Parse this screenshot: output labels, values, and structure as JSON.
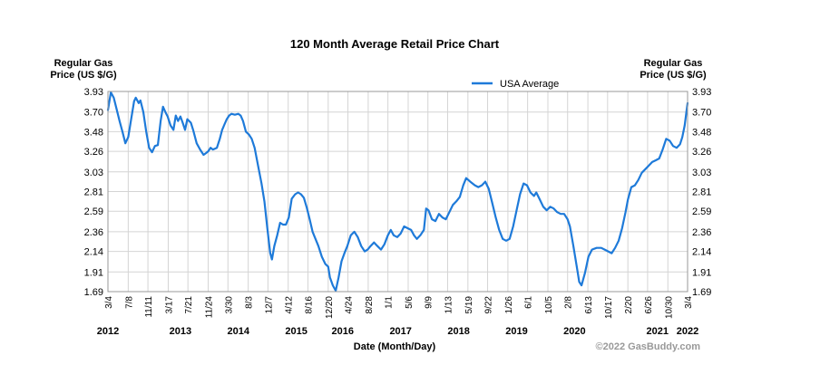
{
  "chart_data": {
    "type": "line",
    "title": "120 Month Average Retail Price Chart",
    "ylabel_left": [
      "Regular Gas",
      "Price (US $/G)"
    ],
    "ylabel_right": [
      "Regular Gas",
      "Price (US $/G)"
    ],
    "xlabel": "Date (Month/Day)",
    "ylim": [
      1.69,
      3.93
    ],
    "yticks": [
      "1.69",
      "1.91",
      "2.14",
      "2.36",
      "2.59",
      "2.81",
      "3.03",
      "3.26",
      "3.48",
      "3.70",
      "3.93"
    ],
    "grid": true,
    "legend": {
      "placement": "top-center",
      "entries": [
        "USA Average"
      ]
    },
    "credit": "©2022 GasBuddy.com",
    "xlim": [
      2012.17,
      2022.17
    ],
    "xticks": [
      {
        "label": "3/4",
        "t": 2012.17
      },
      {
        "label": "7/8",
        "t": 2012.52
      },
      {
        "label": "11/11",
        "t": 2012.86
      },
      {
        "label": "3/17",
        "t": 2013.21
      },
      {
        "label": "7/21",
        "t": 2013.55
      },
      {
        "label": "11/24",
        "t": 2013.9
      },
      {
        "label": "3/30",
        "t": 2014.24
      },
      {
        "label": "8/3",
        "t": 2014.59
      },
      {
        "label": "12/7",
        "t": 2014.93
      },
      {
        "label": "4/12",
        "t": 2015.28
      },
      {
        "label": "8/16",
        "t": 2015.62
      },
      {
        "label": "12/20",
        "t": 2015.97
      },
      {
        "label": "4/24",
        "t": 2016.31
      },
      {
        "label": "8/28",
        "t": 2016.66
      },
      {
        "label": "1/1",
        "t": 2017.0
      },
      {
        "label": "5/6",
        "t": 2017.35
      },
      {
        "label": "9/9",
        "t": 2017.69
      },
      {
        "label": "1/13",
        "t": 2018.03
      },
      {
        "label": "5/19",
        "t": 2018.38
      },
      {
        "label": "9/22",
        "t": 2018.72
      },
      {
        "label": "1/26",
        "t": 2019.07
      },
      {
        "label": "6/1",
        "t": 2019.41
      },
      {
        "label": "10/5",
        "t": 2019.76
      },
      {
        "label": "2/8",
        "t": 2020.1
      },
      {
        "label": "6/13",
        "t": 2020.45
      },
      {
        "label": "10/17",
        "t": 2020.79
      },
      {
        "label": "2/20",
        "t": 2021.14
      },
      {
        "label": "6/26",
        "t": 2021.48
      },
      {
        "label": "10/30",
        "t": 2021.83
      },
      {
        "label": "3/4",
        "t": 2022.17
      }
    ],
    "year_labels": [
      {
        "label": "2012",
        "t": 2012.17
      },
      {
        "label": "2013",
        "t": 2013.42
      },
      {
        "label": "2014",
        "t": 2014.42
      },
      {
        "label": "2015",
        "t": 2015.42
      },
      {
        "label": "2016",
        "t": 2016.22
      },
      {
        "label": "2017",
        "t": 2017.22
      },
      {
        "label": "2018",
        "t": 2018.22
      },
      {
        "label": "2019",
        "t": 2019.22
      },
      {
        "label": "2020",
        "t": 2020.22
      },
      {
        "label": "2021",
        "t": 2021.65
      },
      {
        "label": "2022",
        "t": 2022.17
      }
    ],
    "series": [
      {
        "name": "USA Average",
        "color": "#1e7ad9",
        "points": [
          [
            2012.17,
            3.72
          ],
          [
            2012.22,
            3.92
          ],
          [
            2012.27,
            3.86
          ],
          [
            2012.32,
            3.73
          ],
          [
            2012.37,
            3.6
          ],
          [
            2012.42,
            3.48
          ],
          [
            2012.47,
            3.35
          ],
          [
            2012.52,
            3.42
          ],
          [
            2012.57,
            3.62
          ],
          [
            2012.62,
            3.82
          ],
          [
            2012.65,
            3.86
          ],
          [
            2012.7,
            3.8
          ],
          [
            2012.73,
            3.83
          ],
          [
            2012.78,
            3.7
          ],
          [
            2012.83,
            3.48
          ],
          [
            2012.88,
            3.3
          ],
          [
            2012.93,
            3.25
          ],
          [
            2012.98,
            3.32
          ],
          [
            2013.03,
            3.33
          ],
          [
            2013.08,
            3.6
          ],
          [
            2013.12,
            3.76
          ],
          [
            2013.16,
            3.7
          ],
          [
            2013.2,
            3.65
          ],
          [
            2013.25,
            3.55
          ],
          [
            2013.3,
            3.5
          ],
          [
            2013.34,
            3.66
          ],
          [
            2013.38,
            3.6
          ],
          [
            2013.42,
            3.65
          ],
          [
            2013.46,
            3.58
          ],
          [
            2013.5,
            3.5
          ],
          [
            2013.54,
            3.62
          ],
          [
            2013.6,
            3.58
          ],
          [
            2013.64,
            3.5
          ],
          [
            2013.7,
            3.35
          ],
          [
            2013.76,
            3.28
          ],
          [
            2013.82,
            3.22
          ],
          [
            2013.86,
            3.24
          ],
          [
            2013.9,
            3.26
          ],
          [
            2013.94,
            3.3
          ],
          [
            2013.98,
            3.28
          ],
          [
            2014.05,
            3.3
          ],
          [
            2014.1,
            3.4
          ],
          [
            2014.14,
            3.5
          ],
          [
            2014.18,
            3.56
          ],
          [
            2014.22,
            3.62
          ],
          [
            2014.26,
            3.66
          ],
          [
            2014.3,
            3.68
          ],
          [
            2014.36,
            3.67
          ],
          [
            2014.42,
            3.68
          ],
          [
            2014.46,
            3.66
          ],
          [
            2014.5,
            3.6
          ],
          [
            2014.55,
            3.48
          ],
          [
            2014.6,
            3.45
          ],
          [
            2014.65,
            3.4
          ],
          [
            2014.7,
            3.3
          ],
          [
            2014.76,
            3.1
          ],
          [
            2014.82,
            2.9
          ],
          [
            2014.87,
            2.7
          ],
          [
            2014.92,
            2.4
          ],
          [
            2014.97,
            2.12
          ],
          [
            2015.0,
            2.05
          ],
          [
            2015.04,
            2.2
          ],
          [
            2015.09,
            2.32
          ],
          [
            2015.14,
            2.46
          ],
          [
            2015.19,
            2.44
          ],
          [
            2015.24,
            2.44
          ],
          [
            2015.29,
            2.52
          ],
          [
            2015.34,
            2.73
          ],
          [
            2015.4,
            2.78
          ],
          [
            2015.45,
            2.8
          ],
          [
            2015.5,
            2.78
          ],
          [
            2015.55,
            2.74
          ],
          [
            2015.6,
            2.63
          ],
          [
            2015.65,
            2.5
          ],
          [
            2015.7,
            2.36
          ],
          [
            2015.75,
            2.28
          ],
          [
            2015.8,
            2.2
          ],
          [
            2015.86,
            2.08
          ],
          [
            2015.92,
            2.0
          ],
          [
            2015.97,
            1.97
          ],
          [
            2016.0,
            1.85
          ],
          [
            2016.05,
            1.76
          ],
          [
            2016.1,
            1.7
          ],
          [
            2016.15,
            1.85
          ],
          [
            2016.2,
            2.03
          ],
          [
            2016.25,
            2.12
          ],
          [
            2016.3,
            2.2
          ],
          [
            2016.36,
            2.32
          ],
          [
            2016.42,
            2.36
          ],
          [
            2016.48,
            2.3
          ],
          [
            2016.54,
            2.2
          ],
          [
            2016.6,
            2.14
          ],
          [
            2016.65,
            2.16
          ],
          [
            2016.7,
            2.2
          ],
          [
            2016.76,
            2.24
          ],
          [
            2016.82,
            2.2
          ],
          [
            2016.88,
            2.16
          ],
          [
            2016.94,
            2.22
          ],
          [
            2017.0,
            2.32
          ],
          [
            2017.05,
            2.38
          ],
          [
            2017.1,
            2.32
          ],
          [
            2017.16,
            2.3
          ],
          [
            2017.22,
            2.34
          ],
          [
            2017.28,
            2.42
          ],
          [
            2017.34,
            2.4
          ],
          [
            2017.4,
            2.38
          ],
          [
            2017.45,
            2.32
          ],
          [
            2017.5,
            2.28
          ],
          [
            2017.56,
            2.32
          ],
          [
            2017.62,
            2.38
          ],
          [
            2017.66,
            2.62
          ],
          [
            2017.7,
            2.6
          ],
          [
            2017.76,
            2.5
          ],
          [
            2017.82,
            2.48
          ],
          [
            2017.88,
            2.56
          ],
          [
            2017.94,
            2.52
          ],
          [
            2018.0,
            2.5
          ],
          [
            2018.06,
            2.58
          ],
          [
            2018.12,
            2.66
          ],
          [
            2018.18,
            2.7
          ],
          [
            2018.24,
            2.75
          ],
          [
            2018.3,
            2.88
          ],
          [
            2018.35,
            2.96
          ],
          [
            2018.42,
            2.92
          ],
          [
            2018.5,
            2.88
          ],
          [
            2018.56,
            2.86
          ],
          [
            2018.62,
            2.88
          ],
          [
            2018.68,
            2.92
          ],
          [
            2018.74,
            2.84
          ],
          [
            2018.8,
            2.68
          ],
          [
            2018.86,
            2.52
          ],
          [
            2018.92,
            2.38
          ],
          [
            2018.98,
            2.28
          ],
          [
            2019.04,
            2.26
          ],
          [
            2019.1,
            2.28
          ],
          [
            2019.16,
            2.42
          ],
          [
            2019.22,
            2.6
          ],
          [
            2019.28,
            2.78
          ],
          [
            2019.34,
            2.9
          ],
          [
            2019.4,
            2.88
          ],
          [
            2019.46,
            2.8
          ],
          [
            2019.52,
            2.76
          ],
          [
            2019.56,
            2.8
          ],
          [
            2019.62,
            2.72
          ],
          [
            2019.68,
            2.64
          ],
          [
            2019.74,
            2.6
          ],
          [
            2019.8,
            2.64
          ],
          [
            2019.86,
            2.62
          ],
          [
            2019.92,
            2.58
          ],
          [
            2019.98,
            2.56
          ],
          [
            2020.04,
            2.56
          ],
          [
            2020.1,
            2.5
          ],
          [
            2020.14,
            2.42
          ],
          [
            2020.2,
            2.2
          ],
          [
            2020.26,
            1.96
          ],
          [
            2020.3,
            1.8
          ],
          [
            2020.34,
            1.76
          ],
          [
            2020.4,
            1.9
          ],
          [
            2020.46,
            2.08
          ],
          [
            2020.52,
            2.16
          ],
          [
            2020.6,
            2.18
          ],
          [
            2020.68,
            2.18
          ],
          [
            2020.74,
            2.16
          ],
          [
            2020.8,
            2.14
          ],
          [
            2020.86,
            2.12
          ],
          [
            2020.92,
            2.18
          ],
          [
            2020.98,
            2.26
          ],
          [
            2021.04,
            2.4
          ],
          [
            2021.1,
            2.58
          ],
          [
            2021.14,
            2.72
          ],
          [
            2021.2,
            2.86
          ],
          [
            2021.26,
            2.88
          ],
          [
            2021.32,
            2.94
          ],
          [
            2021.38,
            3.02
          ],
          [
            2021.44,
            3.06
          ],
          [
            2021.5,
            3.1
          ],
          [
            2021.56,
            3.14
          ],
          [
            2021.62,
            3.16
          ],
          [
            2021.68,
            3.18
          ],
          [
            2021.74,
            3.28
          ],
          [
            2021.8,
            3.4
          ],
          [
            2021.86,
            3.38
          ],
          [
            2021.92,
            3.32
          ],
          [
            2021.98,
            3.3
          ],
          [
            2022.04,
            3.34
          ],
          [
            2022.08,
            3.42
          ],
          [
            2022.12,
            3.55
          ],
          [
            2022.15,
            3.7
          ],
          [
            2022.17,
            3.8
          ]
        ]
      }
    ]
  }
}
